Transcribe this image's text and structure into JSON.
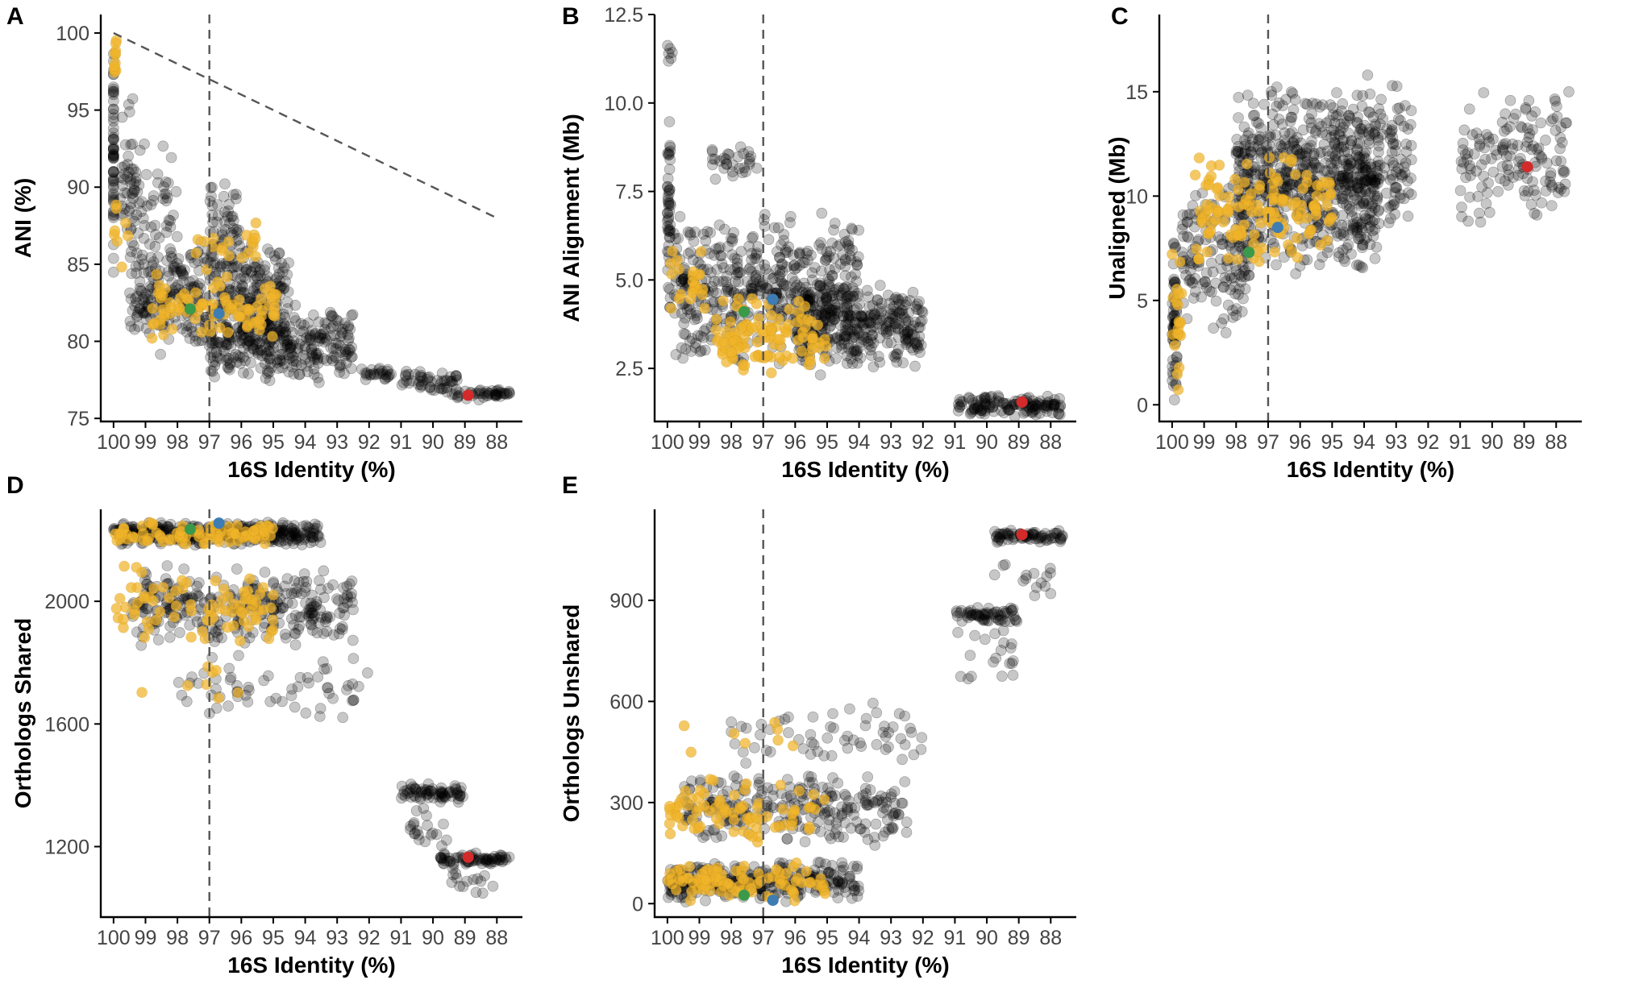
{
  "colors": {
    "cloud": "#000000",
    "highlight": "#f0b429",
    "green": "#3a9a4a",
    "blue": "#3d7db3",
    "red": "#d42a2a"
  },
  "chart_data": [
    {
      "id": "A",
      "type": "scatter",
      "panel_label": "A",
      "xlabel": "16S Identity (%)",
      "ylabel": "ANI (%)",
      "xlim": [
        100.4,
        87.2
      ],
      "ylim": [
        74.8,
        101.2
      ],
      "xticks": [
        "100",
        "99",
        "98",
        "97",
        "96",
        "95",
        "94",
        "93",
        "92",
        "91",
        "90",
        "89",
        "88"
      ],
      "yticks": [
        "75",
        "80",
        "85",
        "90",
        "95",
        "100"
      ],
      "ref_vline": 97,
      "ref_diagonal": [
        [
          100,
          100
        ],
        [
          88,
          88
        ]
      ],
      "clusters": [
        {
          "color": "cloud",
          "n": 60,
          "x": [
            100,
            100
          ],
          "y": [
            84,
            100
          ],
          "seed": 11
        },
        {
          "color": "cloud",
          "n": 45,
          "x": [
            99.3,
            99.8
          ],
          "y": [
            84,
            96
          ],
          "seed": 12
        },
        {
          "color": "cloud",
          "n": 50,
          "x": [
            98,
            99.3
          ],
          "y": [
            84,
            93
          ],
          "seed": 13
        },
        {
          "color": "cloud",
          "n": 400,
          "x": [
            94.5,
            99.5
          ],
          "y": [
            79,
            87
          ],
          "seed": 14
        },
        {
          "color": "cloud",
          "n": 320,
          "x": [
            92.5,
            97
          ],
          "y": [
            77.3,
            82.5
          ],
          "seed": 15
        },
        {
          "color": "cloud",
          "n": 40,
          "x": [
            96,
            97
          ],
          "y": [
            85,
            91
          ],
          "seed": 16
        },
        {
          "color": "cloud",
          "n": 25,
          "x": [
            91.3,
            92.5
          ],
          "y": [
            77.3,
            78.5
          ],
          "seed": 17
        },
        {
          "color": "cloud",
          "n": 50,
          "x": [
            89.2,
            91
          ],
          "y": [
            76.6,
            78.2
          ],
          "seed": 18
        },
        {
          "color": "cloud",
          "n": 45,
          "x": [
            87.6,
            89.4
          ],
          "y": [
            76.1,
            77
          ],
          "seed": 19
        },
        {
          "color": "highlight",
          "n": 10,
          "x": [
            99.9,
            100
          ],
          "y": [
            97,
            100
          ],
          "seed": 21
        },
        {
          "color": "highlight",
          "n": 8,
          "x": [
            99.5,
            100
          ],
          "y": [
            84.5,
            90
          ],
          "seed": 22
        },
        {
          "color": "highlight",
          "n": 90,
          "x": [
            94.8,
            98.8
          ],
          "y": [
            80,
            84.5
          ],
          "seed": 23
        },
        {
          "color": "highlight",
          "n": 20,
          "x": [
            95.5,
            97.5
          ],
          "y": [
            84,
            88
          ],
          "seed": 24
        }
      ],
      "markers": [
        {
          "name": "green",
          "x": 97.6,
          "y": 82.1
        },
        {
          "name": "blue",
          "x": 96.7,
          "y": 81.8
        },
        {
          "name": "red",
          "x": 88.9,
          "y": 76.5
        }
      ]
    },
    {
      "id": "B",
      "type": "scatter",
      "panel_label": "B",
      "xlabel": "16S Identity (%)",
      "ylabel": "ANI Alignment (Mb)",
      "xlim": [
        100.4,
        87.2
      ],
      "ylim": [
        1.0,
        12.5
      ],
      "xticks": [
        "100",
        "99",
        "98",
        "97",
        "96",
        "95",
        "94",
        "93",
        "92",
        "91",
        "90",
        "89",
        "88"
      ],
      "yticks": [
        "2.5",
        "5.0",
        "7.5",
        "10.0",
        "12.5"
      ],
      "ref_vline": 97,
      "clusters": [
        {
          "color": "cloud",
          "n": 50,
          "x": [
            99.9,
            100
          ],
          "y": [
            3.8,
            10
          ],
          "seed": 31
        },
        {
          "color": "cloud",
          "n": 500,
          "x": [
            94,
            99.8
          ],
          "y": [
            2.4,
            7
          ],
          "seed": 32
        },
        {
          "color": "cloud",
          "n": 300,
          "x": [
            92,
            96
          ],
          "y": [
            2.3,
            5
          ],
          "seed": 33
        },
        {
          "color": "cloud",
          "n": 30,
          "x": [
            97.2,
            98.6
          ],
          "y": [
            7.8,
            8.9
          ],
          "seed": 34
        },
        {
          "color": "cloud",
          "n": 6,
          "x": [
            99.8,
            100
          ],
          "y": [
            10.5,
            12
          ],
          "seed": 35
        },
        {
          "color": "cloud",
          "n": 130,
          "x": [
            87.7,
            90.9
          ],
          "y": [
            1.1,
            1.8
          ],
          "seed": 36
        },
        {
          "color": "highlight",
          "n": 25,
          "x": [
            98.8,
            99.9
          ],
          "y": [
            3.8,
            6.2
          ],
          "seed": 37
        },
        {
          "color": "highlight",
          "n": 110,
          "x": [
            95,
            98.5
          ],
          "y": [
            2.2,
            4.6
          ],
          "seed": 38
        }
      ],
      "markers": [
        {
          "name": "green",
          "x": 97.6,
          "y": 4.1
        },
        {
          "name": "blue",
          "x": 96.7,
          "y": 4.45
        },
        {
          "name": "red",
          "x": 88.9,
          "y": 1.55
        }
      ]
    },
    {
      "id": "C",
      "type": "scatter",
      "panel_label": "C",
      "xlabel": "16S Identity (%)",
      "ylabel": "Unaligned (Mb)",
      "xlim": [
        100.4,
        87.2
      ],
      "ylim": [
        -0.8,
        18.7
      ],
      "xticks": [
        "100",
        "99",
        "98",
        "97",
        "96",
        "95",
        "94",
        "93",
        "92",
        "91",
        "90",
        "89",
        "88"
      ],
      "yticks": [
        "0",
        "5",
        "10",
        "15"
      ],
      "ref_vline": 97,
      "clusters": [
        {
          "color": "cloud",
          "n": 60,
          "x": [
            99.85,
            100
          ],
          "y": [
            0,
            8
          ],
          "seed": 41
        },
        {
          "color": "cloud",
          "n": 150,
          "x": [
            97.5,
            99.7
          ],
          "y": [
            3,
            11
          ],
          "seed": 42
        },
        {
          "color": "cloud",
          "n": 650,
          "x": [
            93.5,
            98
          ],
          "y": [
            6,
            15.5
          ],
          "seed": 43
        },
        {
          "color": "cloud",
          "n": 120,
          "x": [
            92.5,
            94.5
          ],
          "y": [
            7,
            16
          ],
          "seed": 44
        },
        {
          "color": "cloud",
          "n": 150,
          "x": [
            87.6,
            91
          ],
          "y": [
            8.5,
            15.3
          ],
          "seed": 45
        },
        {
          "color": "highlight",
          "n": 20,
          "x": [
            99.7,
            100
          ],
          "y": [
            0.5,
            8
          ],
          "seed": 46
        },
        {
          "color": "highlight",
          "n": 140,
          "x": [
            95,
            99.3
          ],
          "y": [
            6.3,
            12.5
          ],
          "seed": 47
        }
      ],
      "markers": [
        {
          "name": "green",
          "x": 97.6,
          "y": 7.3
        },
        {
          "name": "blue",
          "x": 96.7,
          "y": 8.5
        },
        {
          "name": "red",
          "x": 88.9,
          "y": 11.4
        }
      ]
    },
    {
      "id": "D",
      "type": "scatter",
      "panel_label": "D",
      "xlabel": "16S Identity (%)",
      "ylabel": "Orthologs Shared",
      "xlim": [
        100.4,
        87.2
      ],
      "ylim": [
        970,
        2300
      ],
      "xticks": [
        "100",
        "99",
        "98",
        "97",
        "96",
        "95",
        "94",
        "93",
        "92",
        "91",
        "90",
        "89",
        "88"
      ],
      "yticks": [
        "1200",
        "1600",
        "2000"
      ],
      "ref_vline": 97,
      "clusters": [
        {
          "color": "cloud",
          "n": 350,
          "x": [
            93.5,
            100
          ],
          "y": [
            2180,
            2260
          ],
          "seed": 51
        },
        {
          "color": "cloud",
          "n": 300,
          "x": [
            92.5,
            99.5
          ],
          "y": [
            1850,
            2120
          ],
          "seed": 52
        },
        {
          "color": "cloud",
          "n": 60,
          "x": [
            92,
            98
          ],
          "y": [
            1600,
            1850
          ],
          "seed": 53
        },
        {
          "color": "cloud",
          "n": 70,
          "x": [
            89,
            91
          ],
          "y": [
            1340,
            1410
          ],
          "seed": 54
        },
        {
          "color": "cloud",
          "n": 20,
          "x": [
            89.5,
            91
          ],
          "y": [
            1180,
            1340
          ],
          "seed": 55
        },
        {
          "color": "cloud",
          "n": 70,
          "x": [
            87.6,
            89.8
          ],
          "y": [
            1140,
            1180
          ],
          "seed": 56
        },
        {
          "color": "cloud",
          "n": 15,
          "x": [
            88,
            89.5
          ],
          "y": [
            1040,
            1140
          ],
          "seed": 57
        },
        {
          "color": "highlight",
          "n": 80,
          "x": [
            95,
            100
          ],
          "y": [
            2180,
            2260
          ],
          "seed": 58
        },
        {
          "color": "highlight",
          "n": 80,
          "x": [
            95,
            100
          ],
          "y": [
            1850,
            2120
          ],
          "seed": 59
        },
        {
          "color": "highlight",
          "n": 8,
          "x": [
            96,
            99.5
          ],
          "y": [
            1630,
            1800
          ],
          "seed": 60
        }
      ],
      "markers": [
        {
          "name": "green",
          "x": 97.6,
          "y": 2235
        },
        {
          "name": "blue",
          "x": 96.7,
          "y": 2255
        },
        {
          "name": "red",
          "x": 88.9,
          "y": 1165
        }
      ]
    },
    {
      "id": "E",
      "type": "scatter",
      "panel_label": "E",
      "xlabel": "16S Identity (%)",
      "ylabel": "Orthologs Unshared",
      "xlim": [
        100.4,
        87.2
      ],
      "ylim": [
        -40,
        1170
      ],
      "xticks": [
        "100",
        "99",
        "98",
        "97",
        "96",
        "95",
        "94",
        "93",
        "92",
        "91",
        "90",
        "89",
        "88"
      ],
      "yticks": [
        "0",
        "300",
        "600",
        "900"
      ],
      "ref_vline": 97,
      "clusters": [
        {
          "color": "cloud",
          "n": 300,
          "x": [
            94,
            100
          ],
          "y": [
            0,
            130
          ],
          "seed": 61
        },
        {
          "color": "cloud",
          "n": 250,
          "x": [
            92.5,
            99.5
          ],
          "y": [
            170,
            400
          ],
          "seed": 62
        },
        {
          "color": "cloud",
          "n": 60,
          "x": [
            92,
            98
          ],
          "y": [
            400,
            600
          ],
          "seed": 63
        },
        {
          "color": "cloud",
          "n": 70,
          "x": [
            87.6,
            89.8
          ],
          "y": [
            1070,
            1110
          ],
          "seed": 64
        },
        {
          "color": "cloud",
          "n": 60,
          "x": [
            89,
            91
          ],
          "y": [
            830,
            880
          ],
          "seed": 65
        },
        {
          "color": "cloud",
          "n": 20,
          "x": [
            89,
            91
          ],
          "y": [
            650,
            830
          ],
          "seed": 66
        },
        {
          "color": "cloud",
          "n": 15,
          "x": [
            88,
            90
          ],
          "y": [
            880,
            1070
          ],
          "seed": 67
        },
        {
          "color": "highlight",
          "n": 90,
          "x": [
            95,
            100
          ],
          "y": [
            0,
            130
          ],
          "seed": 68
        },
        {
          "color": "highlight",
          "n": 80,
          "x": [
            95,
            100
          ],
          "y": [
            170,
            380
          ],
          "seed": 69
        },
        {
          "color": "highlight",
          "n": 8,
          "x": [
            95.5,
            99.5
          ],
          "y": [
            400,
            570
          ],
          "seed": 70
        }
      ],
      "markers": [
        {
          "name": "green",
          "x": 97.6,
          "y": 25
        },
        {
          "name": "blue",
          "x": 96.7,
          "y": 10
        },
        {
          "name": "red",
          "x": 88.9,
          "y": 1095
        }
      ]
    }
  ]
}
